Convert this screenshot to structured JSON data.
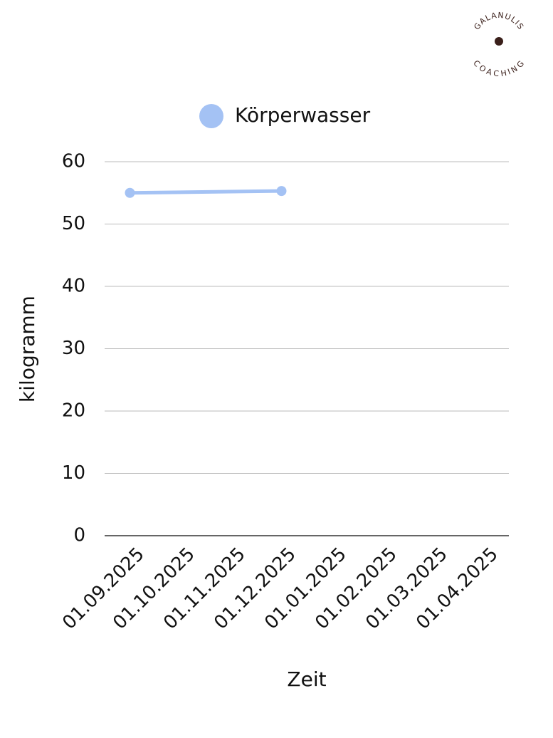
{
  "logo": {
    "top": "GALANULIS",
    "bottom": "COACHING"
  },
  "chart_data": {
    "type": "line",
    "x_label": "Zeit",
    "y_label": "kilogramm",
    "categories": [
      "01.09.2025",
      "01.10.2025",
      "01.11.2025",
      "01.12.2025",
      "01.01.2025",
      "01.02.2025",
      "01.03.2025",
      "01.04.2025"
    ],
    "series": [
      {
        "name": "Körperwasser",
        "color": "#a4c2f4",
        "values": [
          55.0,
          null,
          null,
          55.3,
          null,
          null,
          null,
          null
        ]
      }
    ],
    "span_gaps": true,
    "ylim": [
      0,
      60
    ],
    "yticks": [
      0,
      10,
      20,
      30,
      40,
      50,
      60
    ],
    "grid": true,
    "legend": "top"
  }
}
